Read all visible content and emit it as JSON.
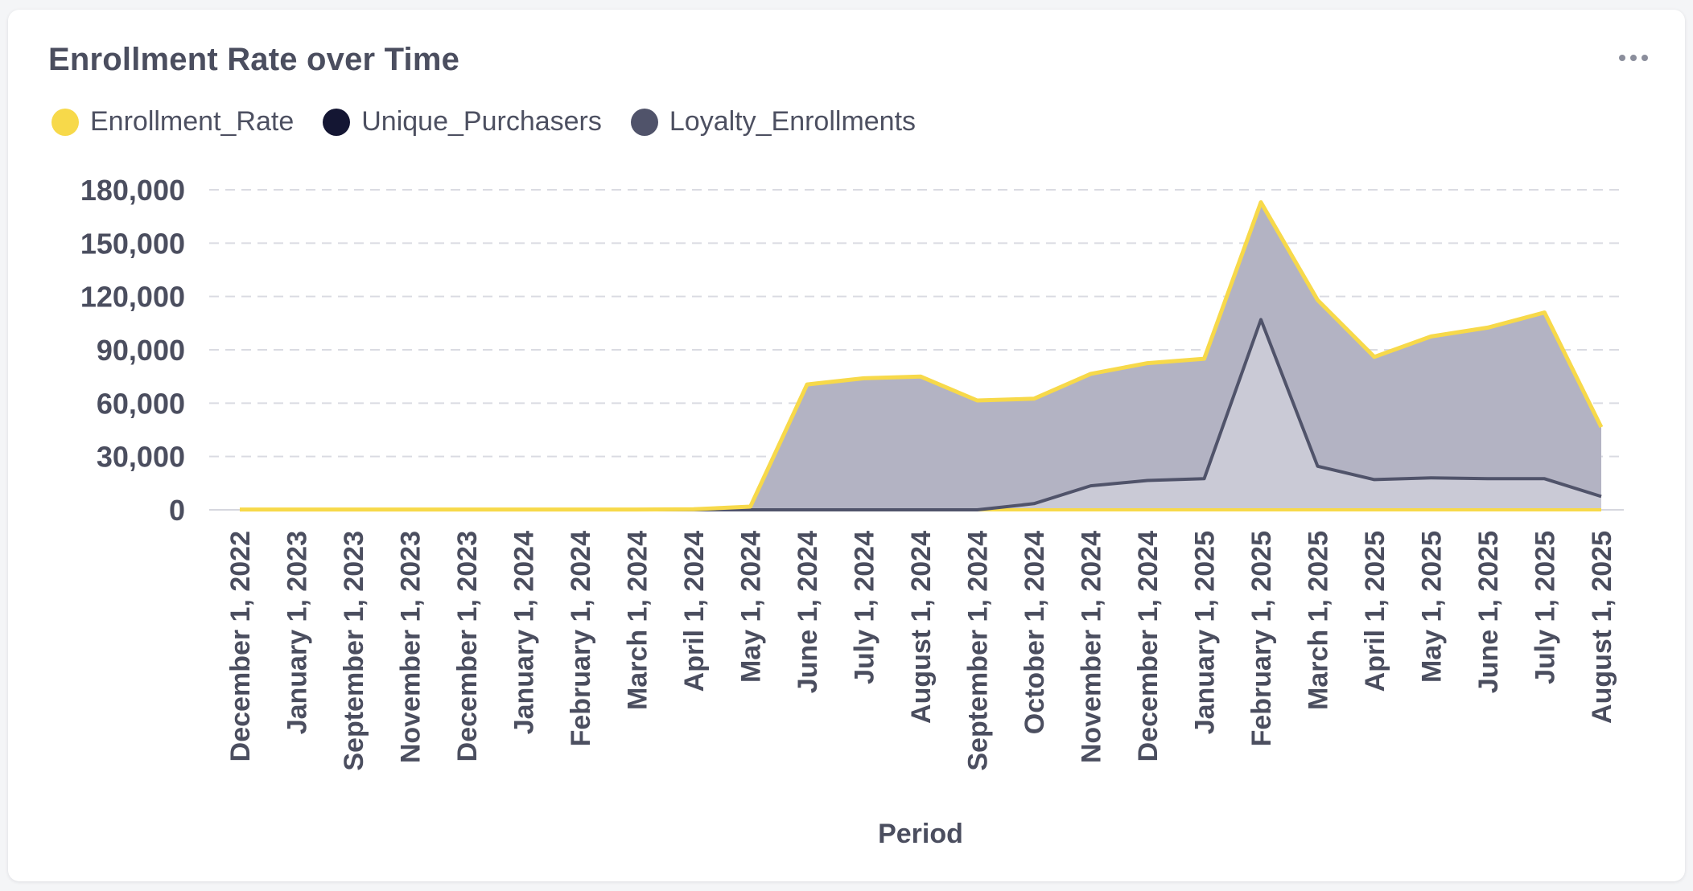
{
  "card": {
    "title": "Enrollment Rate over Time",
    "menu_icon": "more-horizontal-icon"
  },
  "legend": [
    {
      "label": "Enrollment_Rate",
      "color": "#f7d94a"
    },
    {
      "label": "Unique_Purchasers",
      "color": "#141633"
    },
    {
      "label": "Loyalty_Enrollments",
      "color": "#50536a"
    }
  ],
  "chart_data": {
    "type": "area",
    "title": "Enrollment Rate over Time",
    "xlabel": "Period",
    "ylabel": "",
    "ylim": [
      0,
      180000
    ],
    "yticks": [
      0,
      30000,
      60000,
      90000,
      120000,
      150000,
      180000
    ],
    "ytick_labels": [
      "0",
      "30,000",
      "60,000",
      "90,000",
      "120,000",
      "150,000",
      "180,000"
    ],
    "grid": true,
    "legend_position": "top-left",
    "categories": [
      "December 1, 2022",
      "January 1, 2023",
      "September 1, 2023",
      "November 1, 2023",
      "December 1, 2023",
      "January 1, 2024",
      "February 1, 2024",
      "March 1, 2024",
      "April 1, 2024",
      "May 1, 2024",
      "June 1, 2024",
      "July 1, 2024",
      "August 1, 2024",
      "September 1, 2024",
      "October 1, 2024",
      "November 1, 2024",
      "December 1, 2024",
      "January 1, 2025",
      "February 1, 2025",
      "March 1, 2025",
      "April 1, 2025",
      "May 1, 2025",
      "June 1, 2025",
      "July 1, 2025",
      "August 1, 2025"
    ],
    "series": [
      {
        "name": "Loyalty_Enrollments",
        "values": [
          0,
          0,
          0,
          0,
          0,
          0,
          0,
          0,
          0,
          0,
          0,
          0,
          0,
          0,
          3500,
          13500,
          16500,
          17500,
          107000,
          24500,
          17000,
          18000,
          17500,
          17500,
          7500
        ],
        "line_color": "#50536a",
        "fill_color": "#cacad6"
      },
      {
        "name": "Unique_Purchasers",
        "values": [
          200,
          200,
          200,
          200,
          200,
          200,
          200,
          200,
          300,
          1800,
          70500,
          74000,
          75000,
          61500,
          62500,
          76500,
          82500,
          85000,
          173000,
          118000,
          86000,
          97500,
          102500,
          111000,
          46500
        ],
        "line_color": "#f7d94a",
        "fill_color": "#b3b3c3"
      },
      {
        "name": "Enrollment_Rate",
        "values": [
          0,
          0,
          0,
          0,
          0,
          0,
          0,
          0,
          0,
          0,
          0,
          0,
          0,
          0,
          0,
          0,
          0,
          0,
          0,
          0,
          0,
          0,
          0,
          0,
          0
        ],
        "line_color": "#f7d94a"
      }
    ]
  }
}
